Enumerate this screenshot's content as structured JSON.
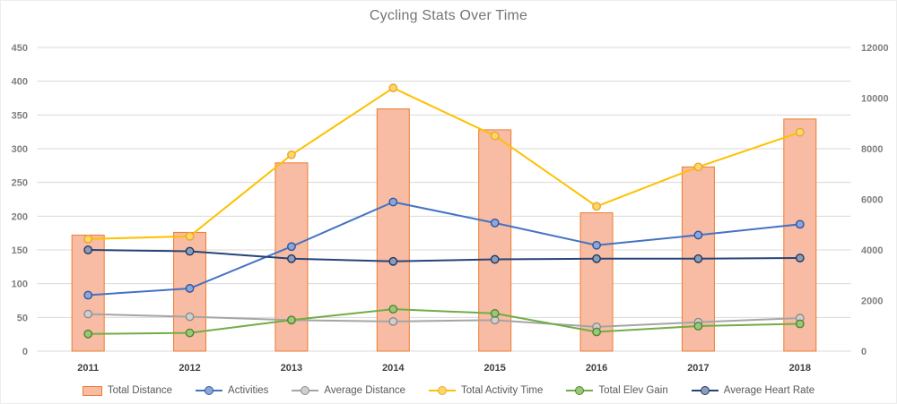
{
  "chart_data": {
    "type": "combo-bar-line",
    "title": "Cycling Stats Over Time",
    "categories": [
      "2011",
      "2012",
      "2013",
      "2014",
      "2015",
      "2016",
      "2017",
      "2018"
    ],
    "series": [
      {
        "name": "Total Distance",
        "type": "bar",
        "axis": "left",
        "values": [
          172,
          176,
          279,
          359,
          328,
          205,
          273,
          344
        ],
        "fill": "#F7BCA3",
        "border": "#ED7D31"
      },
      {
        "name": "Activities",
        "type": "line",
        "axis": "left",
        "values": [
          83,
          93,
          155,
          221,
          190,
          157,
          172,
          188
        ],
        "color": "#4472C4",
        "marker_fill": "#8AA7DB",
        "marker_stroke": "#35549B"
      },
      {
        "name": "Average Distance",
        "type": "line",
        "axis": "left",
        "values": [
          55,
          51,
          46,
          44,
          46,
          36,
          43,
          49
        ],
        "color": "#A5A5A5",
        "marker_fill": "#CFCFCF",
        "marker_stroke": "#8C8C8C"
      },
      {
        "name": "Total Activity Time",
        "type": "line",
        "axis": "right",
        "values": [
          4430,
          4540,
          7760,
          10400,
          8510,
          5720,
          7280,
          8650
        ],
        "color": "#FFC000",
        "marker_fill": "#FFD95E",
        "marker_stroke": "#E8A33D"
      },
      {
        "name": "Total Elev Gain",
        "type": "line",
        "axis": "right",
        "values": [
          680,
          720,
          1230,
          1660,
          1490,
          760,
          990,
          1080
        ],
        "color": "#70AD47",
        "marker_fill": "#97C977",
        "marker_stroke": "#548235"
      },
      {
        "name": "Average Heart Rate",
        "type": "line",
        "axis": "left",
        "values": [
          150,
          148,
          137,
          133,
          136,
          137,
          137,
          138
        ],
        "color": "#264478",
        "marker_fill": "#8D9DB8",
        "marker_stroke": "#1F3864"
      }
    ],
    "left_axis": {
      "min": 0,
      "max": 450,
      "step": 50,
      "ticks": [
        "0",
        "50",
        "100",
        "150",
        "200",
        "250",
        "300",
        "350",
        "400",
        "450"
      ]
    },
    "right_axis": {
      "min": 0,
      "max": 12000,
      "step": 2000,
      "ticks": [
        "0",
        "2000",
        "4000",
        "6000",
        "8000",
        "10000",
        "12000"
      ]
    },
    "grid": true,
    "legend_position": "bottom",
    "colors": {
      "grid": "#D9D9D9",
      "title_text": "#757575",
      "tick_text": "#7F7F7F",
      "category_text": "#404040",
      "legend_text": "#595959"
    }
  }
}
